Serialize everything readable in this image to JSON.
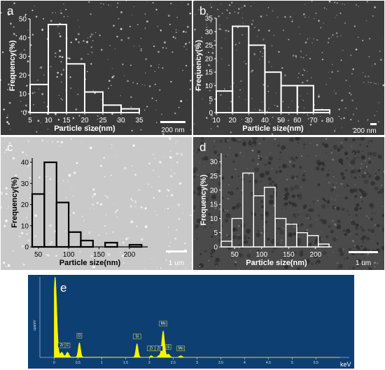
{
  "colors": {
    "light_panel_bar": "#ffffff",
    "dark_panel_bar": "#000000",
    "eds_peak": "#f5f500",
    "eds_background": "#0e3f73"
  },
  "chart_data": [
    {
      "type": "bar",
      "panel_letter": "a",
      "ylabel": "Frequency(%)",
      "xlabel": "Particle size(nm)",
      "yticks": [
        "0",
        "10",
        "20",
        "30",
        "40",
        "50"
      ],
      "xticks": [
        "5",
        "10",
        "15",
        "20",
        "25",
        "30",
        "35"
      ],
      "ylim": [
        0,
        50
      ],
      "xlim": [
        5,
        35
      ],
      "bin_edges": [
        5,
        10,
        15,
        20,
        25,
        30,
        35
      ],
      "values": [
        15,
        47,
        26,
        11,
        4,
        2
      ],
      "scale_bar": "200 nm"
    },
    {
      "type": "bar",
      "panel_letter": "b",
      "ylabel": "Frequency(%)",
      "xlabel": "Particle size(nm)",
      "yticks": [
        "0",
        "5",
        "10",
        "15",
        "20",
        "25",
        "30",
        "35"
      ],
      "xticks": [
        "10",
        "20",
        "30",
        "40",
        "50",
        "60",
        "70",
        "80"
      ],
      "ylim": [
        0,
        35
      ],
      "xlim": [
        10,
        80
      ],
      "bin_edges": [
        10,
        20,
        30,
        40,
        50,
        60,
        70,
        80
      ],
      "values": [
        8,
        32,
        25,
        15,
        10,
        10,
        1
      ],
      "scale_bar": "200 nm"
    },
    {
      "type": "bar",
      "panel_letter": "c",
      "ylabel": "Frequency(%)",
      "xlabel": "Particle size(nm)",
      "yticks": [
        "0",
        "10",
        "20",
        "30",
        "40"
      ],
      "xticks": [
        "50",
        "100",
        "150",
        "200"
      ],
      "ylim": [
        0,
        42
      ],
      "xlim": [
        40,
        230
      ],
      "bin_edges": [
        40,
        60,
        80,
        100,
        120,
        140,
        160,
        180,
        200,
        220
      ],
      "values": [
        25,
        40,
        21,
        7,
        3,
        0,
        2,
        0,
        1
      ],
      "scale_bar": "1 um"
    },
    {
      "type": "bar",
      "panel_letter": "d",
      "ylabel": "Frequency(%)",
      "xlabel": "Particle size(nm)",
      "yticks": [
        "0",
        "5",
        "10",
        "15",
        "20",
        "25",
        "30"
      ],
      "xticks": [
        "50",
        "100",
        "150",
        "200"
      ],
      "ylim": [
        0,
        33
      ],
      "xlim": [
        25,
        230
      ],
      "bin_edges": [
        25,
        45,
        65,
        85,
        105,
        125,
        145,
        165,
        185,
        205,
        225
      ],
      "values": [
        2,
        10,
        26,
        18,
        21,
        10,
        8,
        5,
        4,
        1
      ],
      "scale_bar": "1 um"
    },
    {
      "type": "line",
      "panel_letter": "e",
      "ylabel": "cps/eV",
      "xlabel": "keV",
      "xticks": [
        "0",
        "0.5",
        "1",
        "1.5",
        "2",
        "2.5",
        "3",
        "3.5",
        "4",
        "4.5",
        "5",
        "5.5"
      ],
      "xlim": [
        -0.3,
        6.2
      ],
      "ylim": [
        0,
        100
      ],
      "peaks": [
        {
          "label": "",
          "energy": 0.02,
          "height": 100,
          "width": 0.035
        },
        {
          "label": "Zr",
          "energy": 0.16,
          "height": 6,
          "width": 0.03
        },
        {
          "label": "C",
          "energy": 0.28,
          "height": 6,
          "width": 0.03
        },
        {
          "label": "O",
          "energy": 0.53,
          "height": 18,
          "width": 0.025
        },
        {
          "label": "Si",
          "energy": 1.74,
          "height": 17,
          "width": 0.025
        },
        {
          "label": "Zr",
          "energy": 2.04,
          "height": 2,
          "width": 0.025
        },
        {
          "label": "Zr",
          "energy": 2.2,
          "height": 2,
          "width": 0.025
        },
        {
          "label": "Mo",
          "energy": 2.29,
          "height": 33,
          "width": 0.03
        },
        {
          "label": "S",
          "energy": 2.4,
          "height": 4,
          "width": 0.03
        },
        {
          "label": "Mo",
          "energy": 2.66,
          "height": 2,
          "width": 0.03
        }
      ]
    }
  ]
}
